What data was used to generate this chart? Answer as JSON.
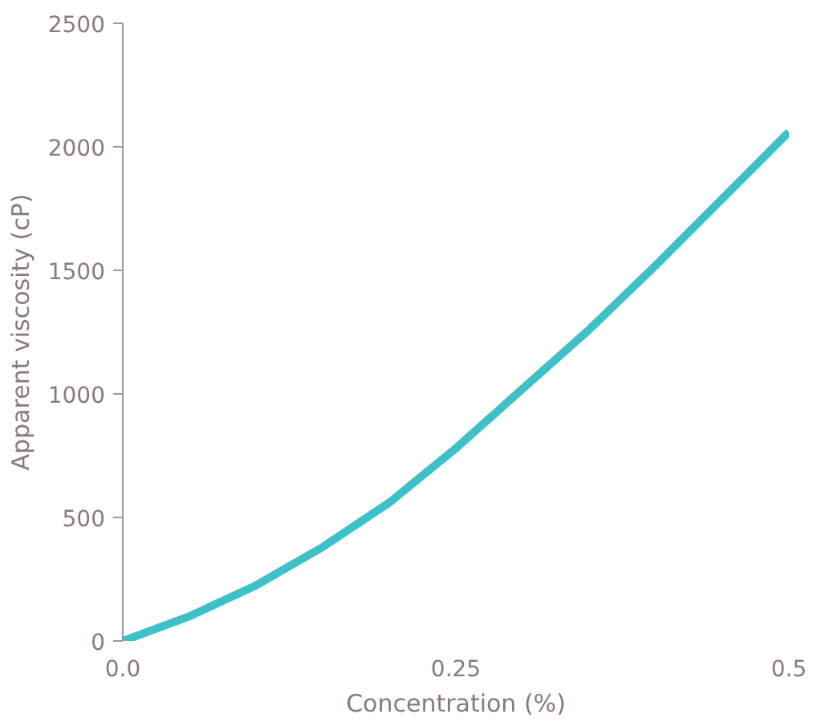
{
  "chart_data": {
    "type": "line",
    "xlabel": "Concentration (%)",
    "ylabel": "Apparent viscosity (cP)",
    "x": [
      0,
      0.05,
      0.1,
      0.15,
      0.2,
      0.25,
      0.3,
      0.35,
      0.4,
      0.45,
      0.5
    ],
    "series": [
      {
        "color": "#3cc1c9",
        "values": [
          0,
          100,
          225,
          380,
          560,
          780,
          1020,
          1260,
          1520,
          1790,
          2060
        ]
      }
    ],
    "xlim": [
      0,
      0.5
    ],
    "xticks": [
      {
        "value": 0,
        "label": "0.0"
      },
      0.25,
      0.5
    ],
    "ylim": [
      0,
      2500
    ],
    "yticks": [
      0,
      500,
      1000,
      1500,
      2000,
      2500
    ],
    "grid": false,
    "marker": "none",
    "line_style": "solid"
  }
}
